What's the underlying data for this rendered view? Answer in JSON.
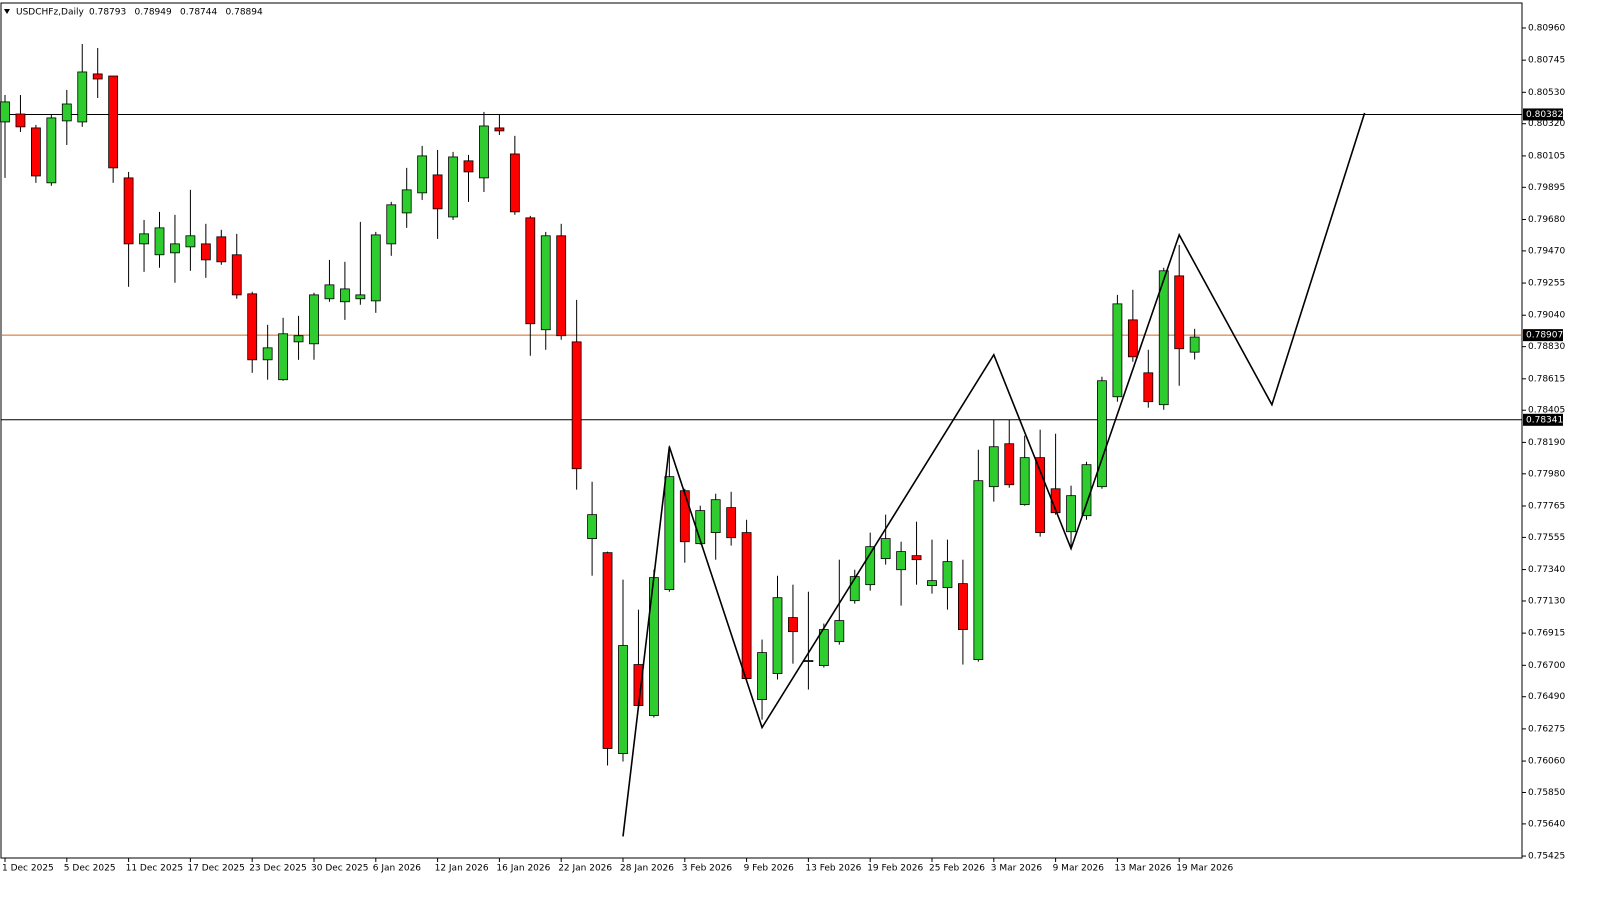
{
  "chart_data": {
    "type": "candlestick",
    "title": "USDCHFz,Daily",
    "up_color": "#2ecc2e",
    "down_color": "#ff0000",
    "categories": [
      "1 Dec 2025",
      null,
      null,
      null,
      "5 Dec 2025",
      null,
      null,
      null,
      "11 Dec 2025",
      null,
      null,
      null,
      "17 Dec 2025",
      null,
      null,
      null,
      "23 Dec 2025",
      null,
      null,
      null,
      "30 Dec 2025",
      null,
      null,
      null,
      "6 Jan 2026",
      null,
      null,
      null,
      "12 Jan 2026",
      null,
      null,
      null,
      "16 Jan 2026",
      null,
      null,
      null,
      "22 Jan 2026",
      null,
      null,
      null,
      "28 Jan 2026",
      null,
      null,
      null,
      "3 Feb 2026",
      null,
      null,
      null,
      "9 Feb 2026",
      null,
      null,
      null,
      "13 Feb 2026",
      null,
      null,
      null,
      "19 Feb 2026",
      null,
      null,
      null,
      "25 Feb 2026",
      null,
      null,
      null,
      "3 Mar 2026",
      null,
      null,
      null,
      "9 Mar 2026",
      null,
      null,
      null,
      "13 Mar 2026",
      null,
      null,
      null,
      "19 Mar 2026",
      null
    ],
    "open": [
      0.80332,
      0.80385,
      0.80292,
      0.79925,
      0.80339,
      0.80332,
      0.80653,
      0.80639,
      0.79958,
      0.79517,
      0.79444,
      0.79457,
      0.79497,
      0.79517,
      0.79564,
      0.79444,
      0.79183,
      0.78742,
      0.78609,
      0.78862,
      0.78849,
      0.7915,
      0.7913,
      0.7915,
      0.79136,
      0.79517,
      0.79724,
      0.79858,
      0.79978,
      0.79697,
      0.80072,
      0.79958,
      0.80292,
      0.80118,
      0.79691,
      0.78943,
      0.79571,
      0.78862,
      0.77547,
      0.77453,
      0.7611,
      0.76705,
      0.76364,
      0.77206,
      0.77867,
      0.77513,
      0.77587,
      0.77754,
      0.77587,
      0.76471,
      0.76645,
      0.77019,
      0.76725,
      0.76698,
      0.76858,
      0.77132,
      0.77239,
      0.77413,
      0.77339,
      0.77433,
      0.77233,
      0.77219,
      0.77246,
      0.76738,
      0.77894,
      0.78181,
      0.77774,
      0.78088,
      0.7788,
      0.77593,
      0.777,
      0.77894,
      0.78495,
      0.79009,
      0.78655,
      0.78442,
      0.79303,
      0.78793
    ],
    "high": [
      0.80512,
      0.80512,
      0.80312,
      0.80379,
      0.80546,
      0.80853,
      0.80826,
      0.80639,
      0.79998,
      0.79677,
      0.79731,
      0.79711,
      0.79878,
      0.79651,
      0.79611,
      0.79584,
      0.79197,
      0.78976,
      0.79023,
      0.79036,
      0.7919,
      0.7941,
      0.79397,
      0.79664,
      0.79597,
      0.79798,
      0.80025,
      0.80172,
      0.80145,
      0.80132,
      0.80112,
      0.80399,
      0.80385,
      0.80239,
      0.79704,
      0.79597,
      0.79651,
      0.79143,
      0.77927,
      0.7746,
      0.77273,
      0.77072,
      0.77339,
      0.78168,
      0.7788,
      0.77767,
      0.77847,
      0.7786,
      0.77673,
      0.76872,
      0.77299,
      0.77239,
      0.77192,
      0.76979,
      0.77406,
      0.77339,
      0.77587,
      0.77707,
      0.77526,
      0.7766,
      0.7754,
      0.7754,
      0.77406,
      0.78141,
      0.78341,
      0.78341,
      0.78235,
      0.78275,
      0.78248,
      0.77901,
      0.78061,
      0.78629,
      0.79176,
      0.7921,
      0.78809,
      0.79357,
      0.7951,
      0.78949
    ],
    "low": [
      0.79958,
      0.80265,
      0.79925,
      0.79905,
      0.80178,
      0.80299,
      0.80492,
      0.79925,
      0.7923,
      0.7933,
      0.79357,
      0.79257,
      0.79337,
      0.7929,
      0.79377,
      0.7915,
      0.78655,
      0.78609,
      0.78602,
      0.78742,
      0.78742,
      0.7913,
      0.79009,
      0.7911,
      0.79056,
      0.79437,
      0.79624,
      0.79811,
      0.7955,
      0.79677,
      0.79798,
      0.79864,
      0.80245,
      0.79711,
      0.78769,
      0.78809,
      0.78876,
      0.77874,
      0.77299,
      0.7603,
      0.76057,
      0.76417,
      0.76351,
      0.77192,
      0.77386,
      0.77507,
      0.77406,
      0.775,
      0.76598,
      0.76337,
      0.76605,
      0.76711,
      0.76538,
      0.76685,
      0.76838,
      0.77112,
      0.77199,
      0.77373,
      0.77099,
      0.77239,
      0.77179,
      0.77072,
      0.76705,
      0.76725,
      0.77794,
      0.77887,
      0.77767,
      0.7756,
      0.77707,
      0.77486,
      0.77673,
      0.7788,
      0.78462,
      0.78729,
      0.78422,
      0.78408,
      0.78569,
      0.78744
    ],
    "close": [
      0.80466,
      0.80299,
      0.79971,
      0.80359,
      0.80452,
      0.80666,
      0.80619,
      0.80025,
      0.79517,
      0.79584,
      0.79624,
      0.79517,
      0.79571,
      0.7941,
      0.79397,
      0.79176,
      0.78742,
      0.78822,
      0.78916,
      0.78903,
      0.79176,
      0.79243,
      0.79216,
      0.79176,
      0.79577,
      0.79778,
      0.79878,
      0.80105,
      0.79751,
      0.80098,
      0.79998,
      0.80305,
      0.80272,
      0.79731,
      0.78983,
      0.79571,
      0.78903,
      0.78014,
      0.77707,
      0.76144,
      0.76832,
      0.76431,
      0.77286,
      0.77961,
      0.77526,
      0.77734,
      0.77807,
      0.77553,
      0.76611,
      0.76785,
      0.77152,
      0.76925,
      0.76732,
      0.76939,
      0.76999,
      0.77293,
      0.77493,
      0.77547,
      0.7746,
      0.77406,
      0.77266,
      0.77393,
      0.76939,
      0.77934,
      0.78161,
      0.77907,
      0.78088,
      0.77587,
      0.7772,
      0.77834,
      0.78041,
      0.78602,
      0.79116,
      0.78762,
      0.78462,
      0.79337,
      0.78816,
      0.78894
    ],
    "zigzag": {
      "color": "#000000",
      "x": [
        40,
        43,
        49,
        64,
        69,
        76,
        82,
        88
      ],
      "values": [
        0.75556,
        0.78161,
        0.76284,
        0.78776,
        0.7748,
        0.79577,
        0.78442,
        0.80392
      ]
    },
    "levels": [
      {
        "value": 0.80382,
        "color": "#000000"
      },
      {
        "value": 0.78907,
        "color": "#d2691e"
      },
      {
        "value": 0.78341,
        "color": "#000000"
      }
    ],
    "ylim": [
      0.75412,
      0.81127
    ],
    "yticks": [
      {
        "value": 0.8096,
        "label": "0.80960"
      },
      {
        "value": 0.80745,
        "label": "0.80745"
      },
      {
        "value": 0.8053,
        "label": "0.80530"
      },
      {
        "value": 0.8032,
        "label": "0.80320"
      },
      {
        "value": 0.80105,
        "label": "0.80105"
      },
      {
        "value": 0.79895,
        "label": "0.79895"
      },
      {
        "value": 0.7968,
        "label": "0.79680"
      },
      {
        "value": 0.7947,
        "label": "0.79470"
      },
      {
        "value": 0.79255,
        "label": "0.79255"
      },
      {
        "value": 0.7904,
        "label": "0.79040"
      },
      {
        "value": 0.7883,
        "label": "0.78830"
      },
      {
        "value": 0.78615,
        "label": "0.78615"
      },
      {
        "value": 0.78405,
        "label": "0.78405"
      },
      {
        "value": 0.7819,
        "label": "0.78190"
      },
      {
        "value": 0.7798,
        "label": "0.77980"
      },
      {
        "value": 0.77765,
        "label": "0.77765"
      },
      {
        "value": 0.77555,
        "label": "0.77555"
      },
      {
        "value": 0.7734,
        "label": "0.77340"
      },
      {
        "value": 0.7713,
        "label": "0.77130"
      },
      {
        "value": 0.76915,
        "label": "0.76915"
      },
      {
        "value": 0.767,
        "label": "0.76700"
      },
      {
        "value": 0.7649,
        "label": "0.76490"
      },
      {
        "value": 0.76275,
        "label": "0.76275"
      },
      {
        "value": 0.7606,
        "label": "0.76060"
      },
      {
        "value": 0.7585,
        "label": "0.75850"
      },
      {
        "value": 0.7564,
        "label": "0.75640"
      },
      {
        "value": 0.75425,
        "label": "0.75425"
      }
    ]
  }
}
